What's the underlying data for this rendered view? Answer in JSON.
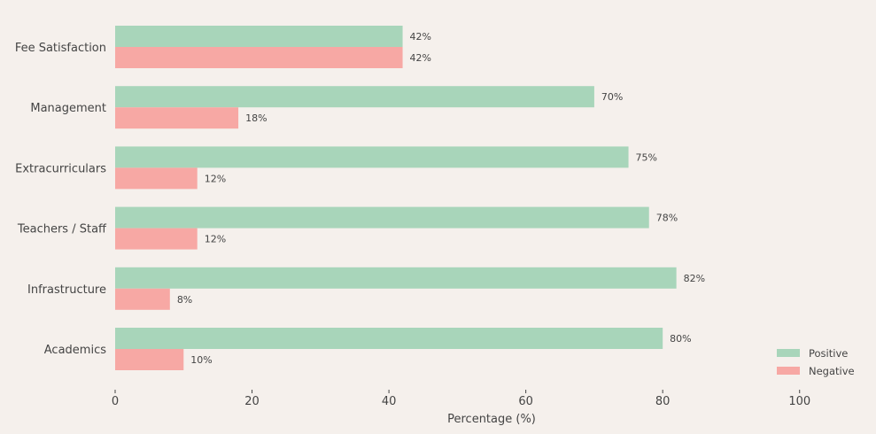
{
  "chart_data": {
    "type": "bar",
    "orientation": "horizontal",
    "categories": [
      "Fee Satisfaction",
      "Management",
      "Extracurriculars",
      "Teachers / Staff",
      "Infrastructure",
      "Academics"
    ],
    "series": [
      {
        "name": "Positive",
        "values": [
          42,
          70,
          75,
          78,
          82,
          80
        ],
        "color": "#a8d5ba"
      },
      {
        "name": "Negative",
        "values": [
          42,
          18,
          12,
          12,
          8,
          10
        ],
        "color": "#f7a8a4"
      }
    ],
    "value_suffix": "%",
    "xlabel": "Percentage (%)",
    "ylabel": "",
    "xlim": [
      0,
      110
    ],
    "xticks": [
      0,
      20,
      40,
      60,
      80,
      100
    ],
    "grid": false,
    "legend_position": "bottom-right"
  }
}
